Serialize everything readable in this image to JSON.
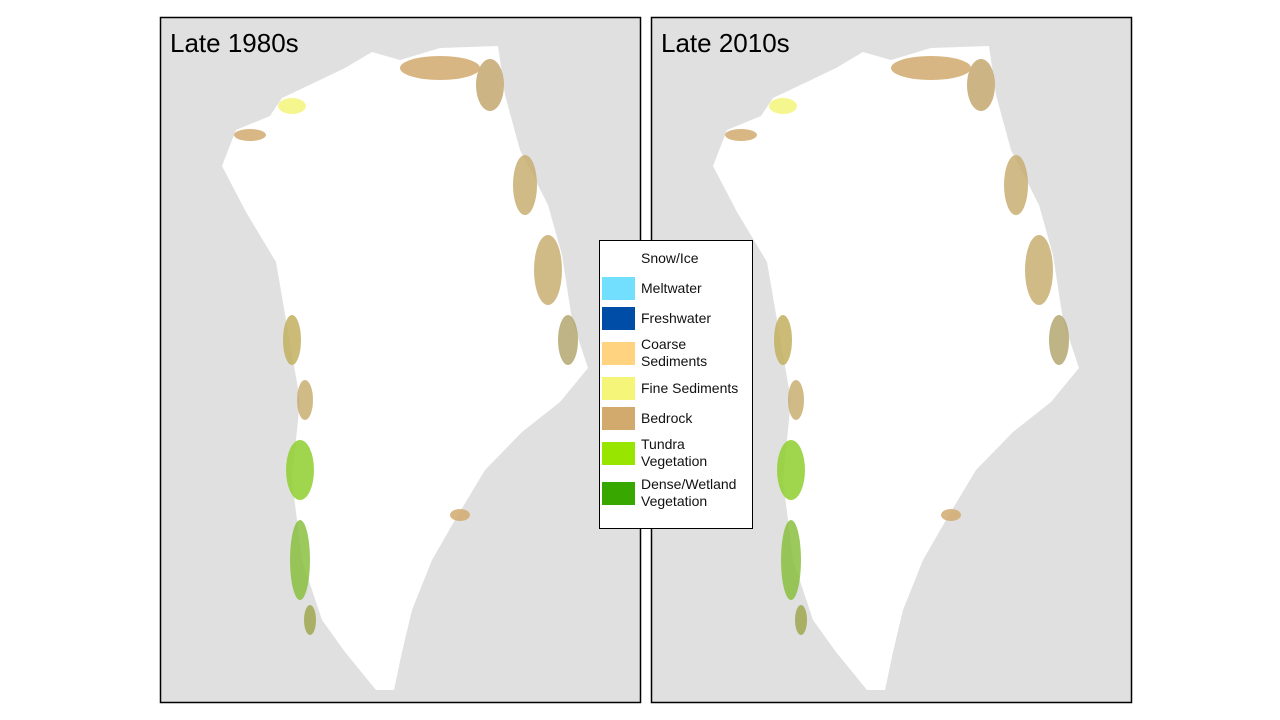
{
  "panels": [
    {
      "title": "Late 1980s"
    },
    {
      "title": "Late 2010s"
    }
  ],
  "legend": [
    {
      "label": "Snow/Ice",
      "color": "#ffffff"
    },
    {
      "label": "Meltwater",
      "color": "#73dfff"
    },
    {
      "label": "Freshwater",
      "color": "#004da8"
    },
    {
      "label": "Coarse Sediments",
      "color": "#ffd37f"
    },
    {
      "label": "Fine Sediments",
      "color": "#f5f57a"
    },
    {
      "label": "Bedrock",
      "color": "#d2aa6e"
    },
    {
      "label": "Tundra Vegetation",
      "color": "#98e600"
    },
    {
      "label": "Dense/Wetland Vegetation",
      "color": "#38a800"
    }
  ]
}
